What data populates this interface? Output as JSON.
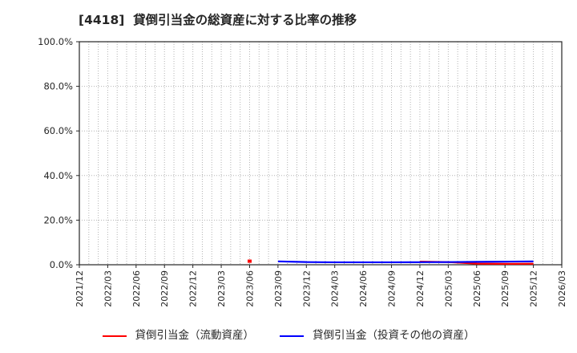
{
  "chart_data": {
    "type": "line",
    "title": "[4418]  貸倒引当金の総資産に対する比率の推移",
    "xlabel": "",
    "ylabel": "",
    "ylim": [
      0,
      100
    ],
    "y_ticks": [
      {
        "value": 0,
        "label": "0.0%"
      },
      {
        "value": 20,
        "label": "20.0%"
      },
      {
        "value": 40,
        "label": "40.0%"
      },
      {
        "value": 60,
        "label": "60.0%"
      },
      {
        "value": 80,
        "label": "80.0%"
      },
      {
        "value": 100,
        "label": "100.0%"
      }
    ],
    "x_labels": [
      "2021/12",
      "2022/03",
      "2022/06",
      "2022/09",
      "2022/12",
      "2023/03",
      "2023/06",
      "2023/09",
      "2023/12",
      "2024/03",
      "2024/06",
      "2024/09",
      "2024/12",
      "2025/03",
      "2025/06",
      "2025/09",
      "2025/12",
      "2026/03"
    ],
    "grid": {
      "style": "dotted",
      "vertical": "monthly",
      "horizontal": "every 20%"
    },
    "legend_position": "bottom-center",
    "series": [
      {
        "name": "貸倒引当金（流動資産）",
        "color": "#ff0000",
        "unit": "%",
        "segments": [
          [
            {
              "x": "2023/06",
              "y": 1.6
            }
          ],
          [
            {
              "x": "2024/12",
              "y": 1.4
            },
            {
              "x": "2025/03",
              "y": 1.2
            },
            {
              "x": "2025/06",
              "y": 0.5
            },
            {
              "x": "2025/09",
              "y": 0.4
            },
            {
              "x": "2025/12",
              "y": 0.45
            }
          ]
        ]
      },
      {
        "name": "貸倒引当金（投資その他の資産）",
        "color": "#0000ff",
        "unit": "%",
        "segments": [
          [
            {
              "x": "2023/09",
              "y": 1.5
            },
            {
              "x": "2023/12",
              "y": 1.2
            },
            {
              "x": "2024/03",
              "y": 1.1
            },
            {
              "x": "2024/06",
              "y": 1.1
            },
            {
              "x": "2024/09",
              "y": 1.1
            },
            {
              "x": "2024/12",
              "y": 1.15
            },
            {
              "x": "2025/03",
              "y": 1.2
            },
            {
              "x": "2025/06",
              "y": 1.3
            },
            {
              "x": "2025/09",
              "y": 1.4
            },
            {
              "x": "2025/12",
              "y": 1.5
            }
          ]
        ]
      }
    ]
  }
}
